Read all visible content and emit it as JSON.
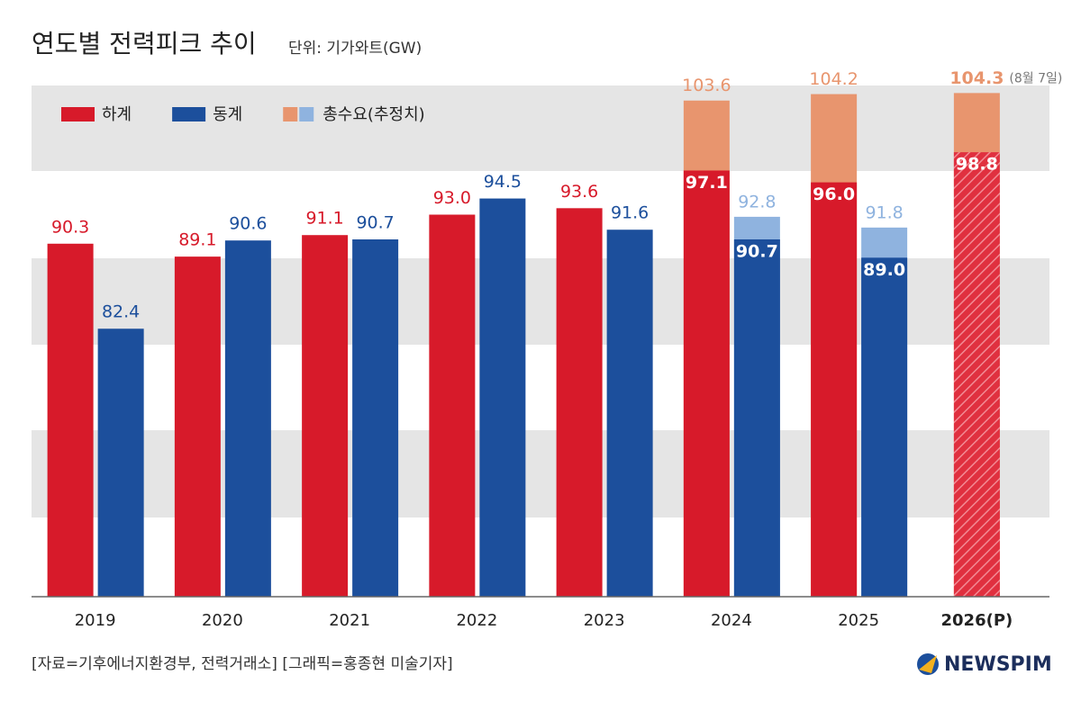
{
  "chart_data": {
    "type": "bar",
    "title": "연도별 전력피크 추이",
    "subtitle": "단위: 기가와트(GW)",
    "categories": [
      "2019",
      "2020",
      "2021",
      "2022",
      "2023",
      "2024",
      "2025",
      "2026(P)"
    ],
    "series": [
      {
        "name": "하계",
        "color": "#d71a2a",
        "values": [
          90.3,
          89.1,
          91.1,
          93.0,
          93.6,
          97.1,
          96.0,
          98.8
        ],
        "value_labels": [
          "90.3",
          "89.1",
          "91.1",
          "93.0",
          "93.6",
          "97.1",
          "96.0",
          "98.8"
        ]
      },
      {
        "name": "동계",
        "color": "#1c4f9c",
        "values": [
          82.4,
          90.6,
          90.7,
          94.5,
          91.6,
          90.7,
          89.0,
          null
        ],
        "value_labels": [
          "82.4",
          "90.6",
          "90.7",
          "94.5",
          "91.6",
          "90.7",
          "89.0",
          null
        ]
      },
      {
        "name": "총수요(추정치)",
        "color": "#e8956e",
        "values": [
          null,
          null,
          null,
          null,
          null,
          103.6,
          104.2,
          104.3
        ],
        "value_labels": [
          null,
          null,
          null,
          null,
          null,
          "103.6",
          "104.2",
          "104.3"
        ]
      },
      {
        "color": "#8fb3df",
        "values": [
          null,
          null,
          null,
          null,
          null,
          92.8,
          91.8,
          null
        ],
        "value_labels": [
          null,
          null,
          null,
          null,
          null,
          "92.8",
          "91.8",
          null
        ]
      }
    ],
    "annotation": "(8월 7일)",
    "ylim": [
      57.5,
      105
    ],
    "source": "[자료=기후에너지환경부, 전력거래소] [그래픽=홍종현 미술기자]",
    "logo": "NEWSPIM"
  }
}
